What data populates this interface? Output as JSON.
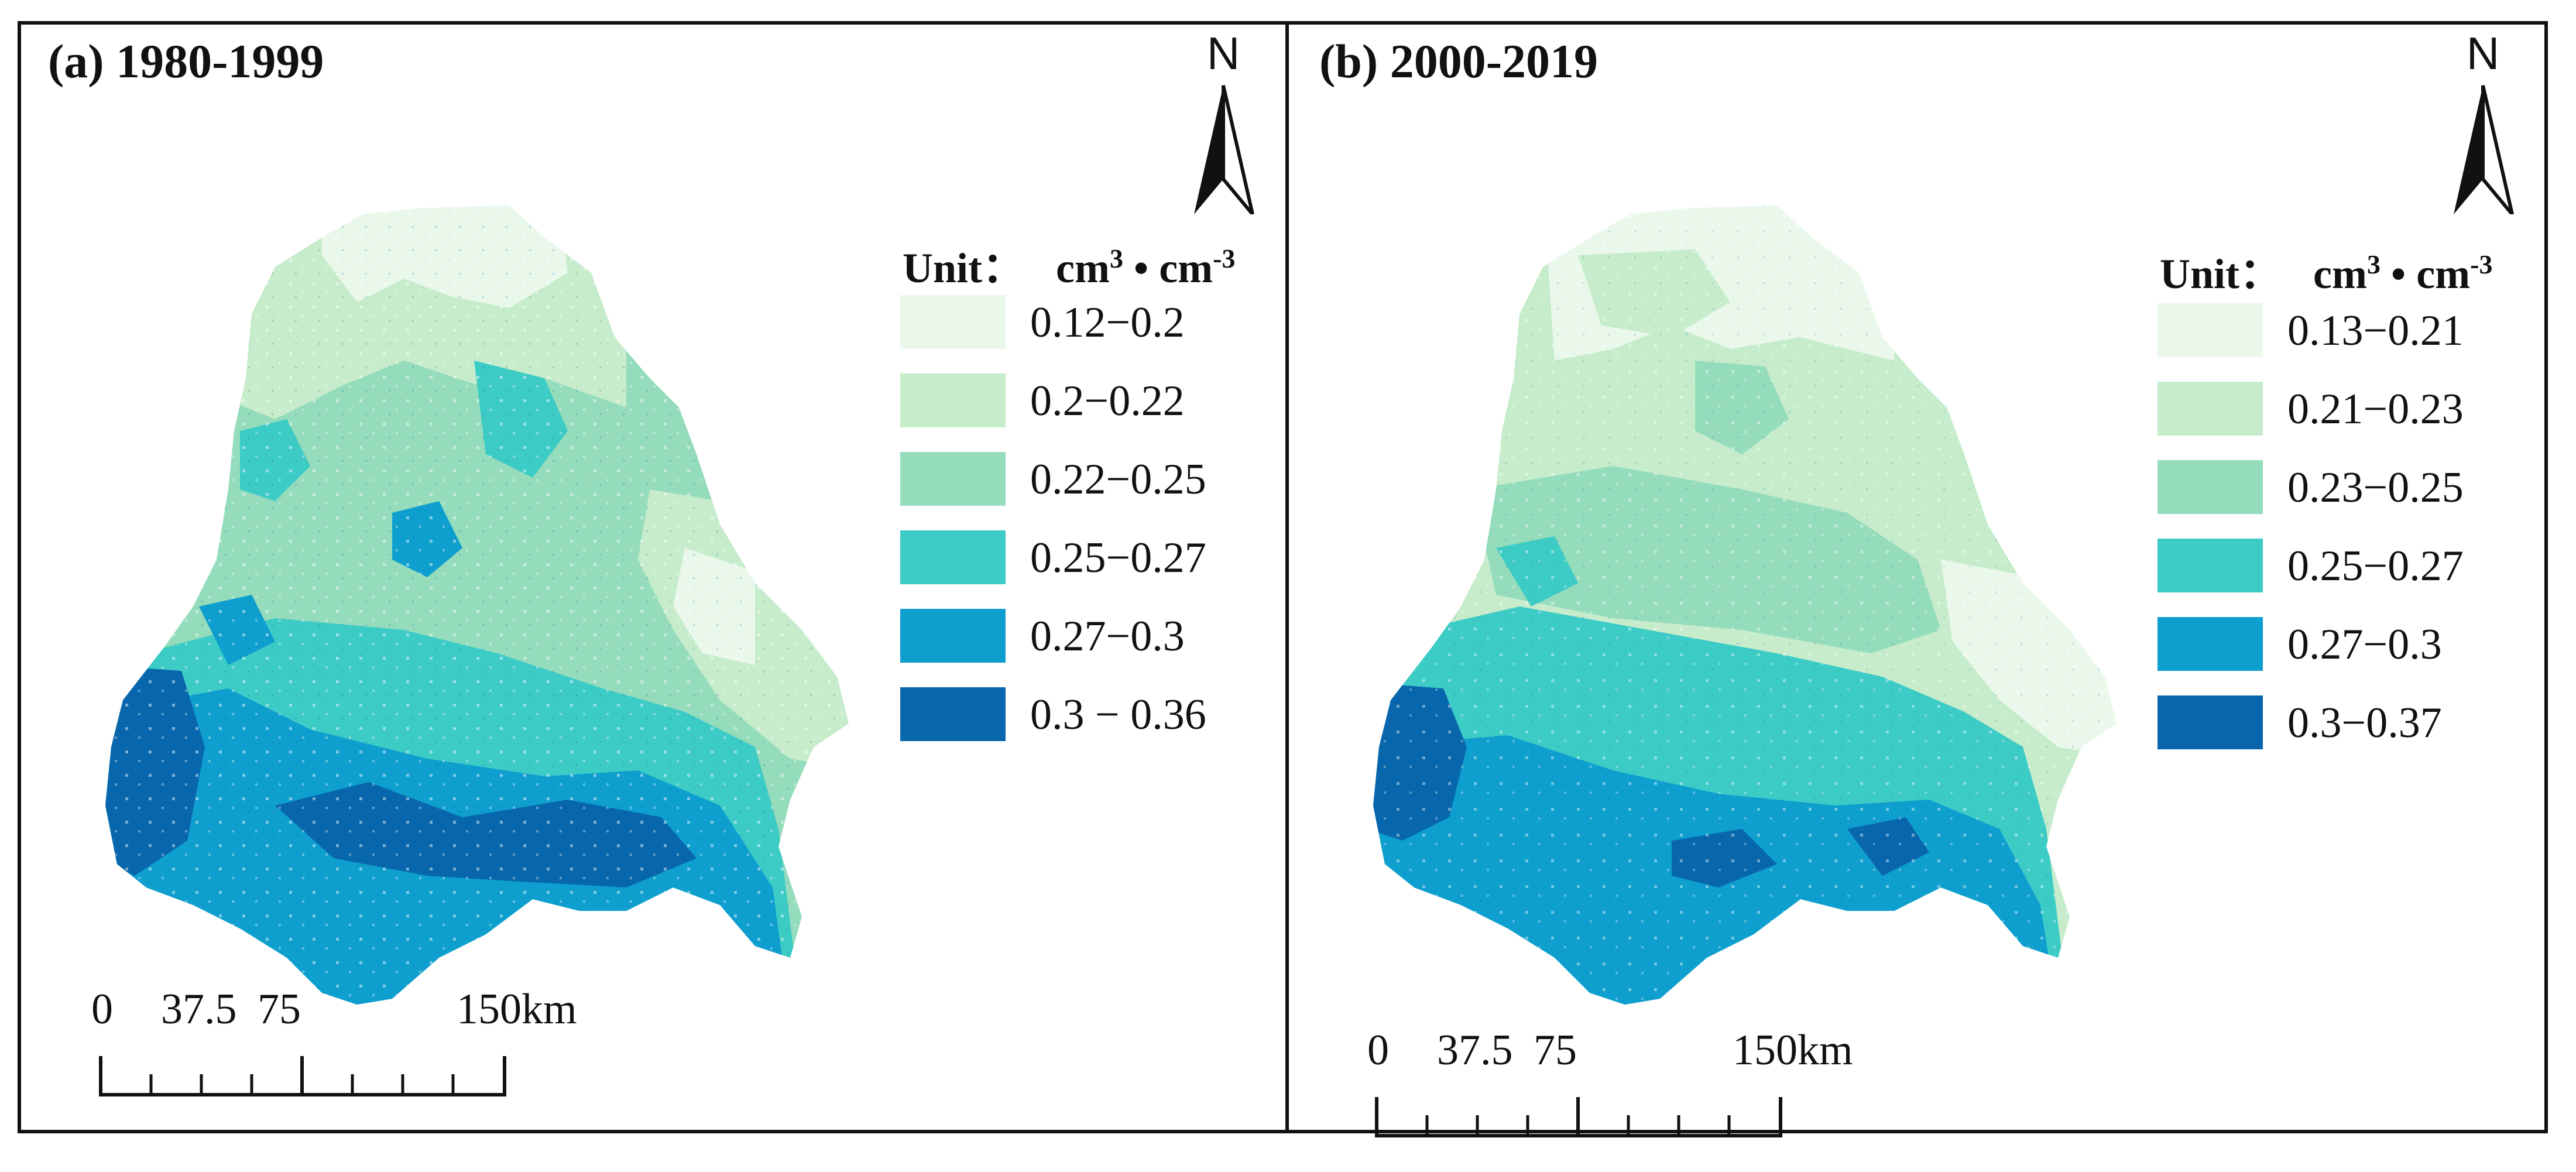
{
  "panels": [
    {
      "title": "(a) 1980-1999",
      "north_label": "N",
      "legend": {
        "unit_prefix": "Unit：",
        "unit_base1": "cm",
        "unit_exp1": "3",
        "unit_dot": " • ",
        "unit_base2": "cm",
        "unit_exp2": "-3",
        "items": [
          {
            "label": "0.12−0.2",
            "color": "#eaf8ec"
          },
          {
            "label": "0.2−0.22",
            "color": "#c6eccb"
          },
          {
            "label": "0.22−0.25",
            "color": "#94dcbb"
          },
          {
            "label": "0.25−0.27",
            "color": "#3dcbc6"
          },
          {
            "label": "0.27−0.3",
            "color": "#0e9fcf"
          },
          {
            "label": "0.3 − 0.36",
            "color": "#0867ac"
          }
        ]
      },
      "scale": {
        "ticks": [
          "0",
          "37.5",
          "75",
          "150km"
        ]
      }
    },
    {
      "title": "(b) 2000-2019",
      "north_label": "N",
      "legend": {
        "unit_prefix": "Unit：",
        "unit_base1": "cm",
        "unit_exp1": "3",
        "unit_dot": " • ",
        "unit_base2": "cm",
        "unit_exp2": "-3",
        "items": [
          {
            "label": "0.13−0.21",
            "color": "#eaf8ec"
          },
          {
            "label": "0.21−0.23",
            "color": "#c6eccb"
          },
          {
            "label": "0.23−0.25",
            "color": "#94dcbb"
          },
          {
            "label": "0.25−0.27",
            "color": "#3dcbc6"
          },
          {
            "label": "0.27−0.3",
            "color": "#0e9fcf"
          },
          {
            "label": "0.3−0.37",
            "color": "#0867ac"
          }
        ]
      },
      "scale": {
        "ticks": [
          "0",
          "37.5",
          "75",
          "150km"
        ]
      }
    }
  ]
}
